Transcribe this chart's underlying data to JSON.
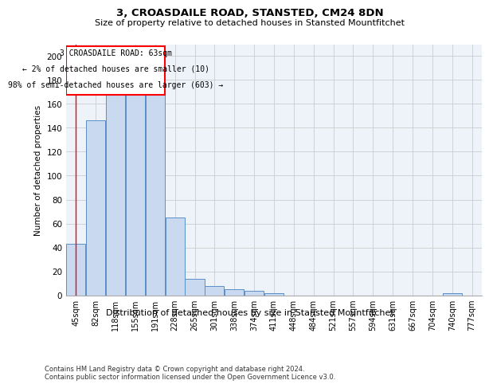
{
  "title1": "3, CROASDAILE ROAD, STANSTED, CM24 8DN",
  "title2": "Size of property relative to detached houses in Stansted Mountfitchet",
  "xlabel": "Distribution of detached houses by size in Stansted Mountfitchet",
  "ylabel": "Number of detached properties",
  "footnote1": "Contains HM Land Registry data © Crown copyright and database right 2024.",
  "footnote2": "Contains public sector information licensed under the Open Government Licence v3.0.",
  "annotation_line1": "3 CROASDAILE ROAD: 63sqm",
  "annotation_line2": "← 2% of detached houses are smaller (10)",
  "annotation_line3": "98% of semi-detached houses are larger (603) →",
  "bar_color": "#c9d9f0",
  "bar_edge_color": "#5b8fc9",
  "categories": [
    "45sqm",
    "82sqm",
    "118sqm",
    "155sqm",
    "191sqm",
    "228sqm",
    "265sqm",
    "301sqm",
    "338sqm",
    "374sqm",
    "411sqm",
    "448sqm",
    "484sqm",
    "521sqm",
    "557sqm",
    "594sqm",
    "631sqm",
    "667sqm",
    "704sqm",
    "740sqm",
    "777sqm"
  ],
  "values": [
    43,
    146,
    168,
    168,
    168,
    65,
    14,
    8,
    5,
    4,
    2,
    0,
    0,
    0,
    0,
    0,
    0,
    0,
    0,
    2,
    0
  ],
  "ylim": [
    0,
    210
  ],
  "yticks": [
    0,
    20,
    40,
    60,
    80,
    100,
    120,
    140,
    160,
    180,
    200
  ],
  "grid_color": "#cccccc",
  "background_color": "#eef2f9"
}
